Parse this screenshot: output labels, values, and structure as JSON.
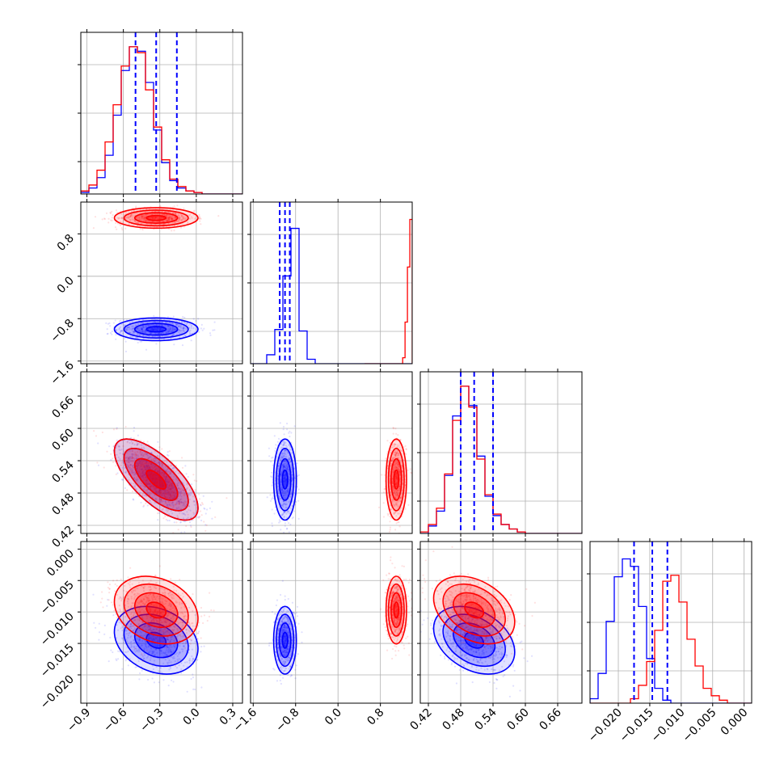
{
  "colors": {
    "red": "#ff0000",
    "blue": "#0000ff",
    "grid": "#b0b0b0",
    "frame": "#000000"
  },
  "chart_data": {
    "type": "corner",
    "grid": true,
    "parameters": [
      {
        "range": [
          -0.95,
          0.38
        ],
        "ticks": [
          "-0.9",
          "-0.6",
          "-0.3",
          "0.0",
          "0.3"
        ],
        "tick_values": [
          -0.9,
          -0.6,
          -0.3,
          0.0,
          0.3
        ]
      },
      {
        "range": [
          -1.65,
          1.4
        ],
        "ticks": [
          "-1.6",
          "-0.8",
          "0.0",
          "0.8"
        ],
        "tick_values": [
          -1.6,
          -0.8,
          0.0,
          0.8
        ]
      },
      {
        "range": [
          0.405,
          0.705
        ],
        "ticks": [
          "0.42",
          "0.48",
          "0.54",
          "0.60",
          "0.66"
        ],
        "tick_values": [
          0.42,
          0.48,
          0.54,
          0.6,
          0.66
        ]
      },
      {
        "range": [
          -0.0245,
          0.0012
        ],
        "ticks": [
          "-0.020",
          "-0.015",
          "-0.010",
          "-0.005",
          "0.000"
        ],
        "tick_values": [
          -0.02,
          -0.015,
          -0.01,
          -0.005,
          0.0
        ]
      }
    ],
    "series": [
      {
        "color": "blue",
        "mean": [
          -0.33,
          -1.0,
          0.505,
          -0.0145
        ],
        "std": [
          0.16,
          0.1,
          0.035,
          0.0025
        ],
        "corr": {
          "0-2": -0.7,
          "0-3": -0.25,
          "2-3": -0.35
        },
        "quantiles": [
          [
            -0.5,
            -0.33,
            -0.16
          ],
          [
            -1.1,
            -1.0,
            -0.91
          ],
          [
            0.48,
            0.505,
            0.54
          ],
          [
            -0.0175,
            -0.0146,
            -0.0122
          ]
        ],
        "hist": [
          [
            0.01,
            0.04,
            0.11,
            0.26,
            0.53,
            0.83,
            0.99,
            0.96,
            0.75,
            0.43,
            0.21,
            0.09,
            0.04,
            0.02,
            0.01,
            0.0,
            0.0,
            0.0,
            0.0,
            0.0
          ],
          [
            0.0,
            0.0,
            0.06,
            0.23,
            0.59,
            0.91,
            0.22,
            0.03,
            0.0,
            0.0,
            0.0,
            0.0,
            0.0,
            0.0,
            0.0,
            0.0,
            0.0,
            0.0,
            0.0,
            0.0
          ],
          [
            0.0,
            0.05,
            0.15,
            0.39,
            0.79,
            0.99,
            0.86,
            0.52,
            0.25,
            0.12,
            0.06,
            0.03,
            0.01,
            0.0,
            0.0,
            0.0,
            0.0,
            0.0,
            0.0,
            0.0
          ],
          [
            0.03,
            0.2,
            0.55,
            0.85,
            0.97,
            0.92,
            0.65,
            0.3,
            0.1,
            0.02,
            0.0,
            0.0,
            0.0,
            0.0,
            0.0,
            0.0,
            0.0,
            0.0,
            0.0,
            0.0
          ]
        ]
      },
      {
        "color": "red",
        "mean": [
          -0.33,
          1.1,
          0.505,
          -0.0097
        ],
        "std": [
          0.16,
          0.09,
          0.035,
          0.0025
        ],
        "corr": {
          "0-2": -0.7,
          "0-3": -0.25,
          "2-3": -0.35
        },
        "hist": [
          [
            0.02,
            0.06,
            0.16,
            0.35,
            0.6,
            0.86,
            0.99,
            0.95,
            0.7,
            0.45,
            0.23,
            0.1,
            0.05,
            0.02,
            0.01,
            0.0,
            0.0,
            0.0,
            0.0,
            0.0
          ],
          [
            0.0,
            0.0,
            0.0,
            0.0,
            0.0,
            0.0,
            0.0,
            0.0,
            0.0,
            0.0,
            0.0,
            0.0,
            0.0,
            0.0,
            0.0,
            0.0,
            0.04,
            0.28,
            0.65,
            0.97
          ],
          [
            0.01,
            0.06,
            0.17,
            0.4,
            0.76,
            0.99,
            0.85,
            0.5,
            0.26,
            0.13,
            0.06,
            0.03,
            0.01,
            0.0,
            0.0,
            0.0,
            0.0,
            0.0,
            0.0,
            0.0
          ],
          [
            0.0,
            0.0,
            0.0,
            0.0,
            0.0,
            0.03,
            0.12,
            0.28,
            0.49,
            0.82,
            0.86,
            0.68,
            0.43,
            0.25,
            0.1,
            0.05,
            0.02,
            0.0,
            0.0,
            0.0
          ]
        ],
        "hist_ranges": [
          null,
          [
            0.5,
            1.4
          ],
          null,
          null
        ]
      }
    ]
  }
}
